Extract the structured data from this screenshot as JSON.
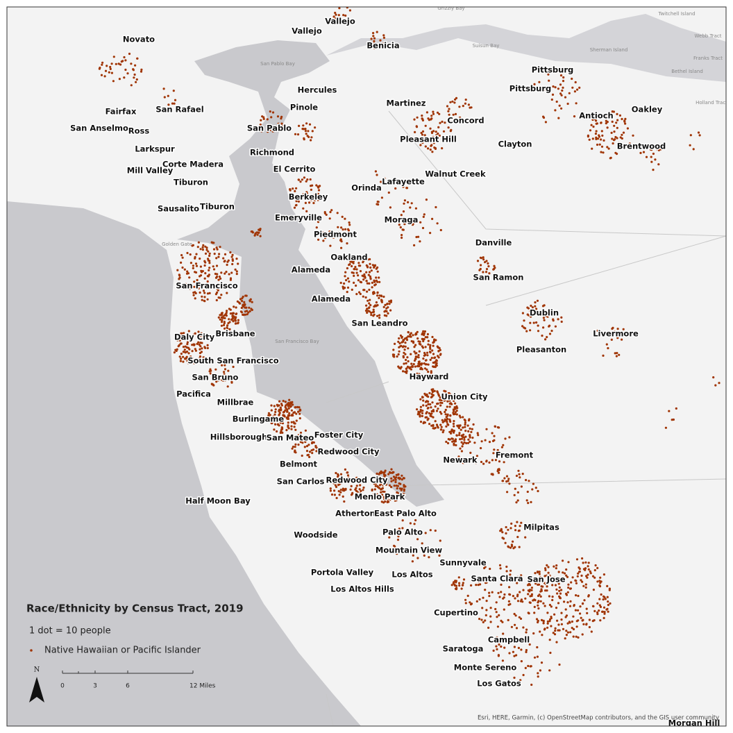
{
  "map": {
    "labels": [
      "Novato",
      "Vallejo",
      "Vallejo",
      "Benicia",
      "Pittsburg",
      "Pittsburg",
      "Hercules",
      "Pinole",
      "Martinez",
      "Fairfax",
      "San Rafael",
      "San Anselmo",
      "Ross",
      "Concord",
      "Antioch",
      "Oakley",
      "San Pablo",
      "Pleasant Hill",
      "Clayton",
      "Brentwood",
      "Larkspur",
      "Richmond",
      "Corte Madera",
      "El Cerrito",
      "Walnut Creek",
      "Mill Valley",
      "Tiburon",
      "Lafayette",
      "Orinda",
      "Sausalito",
      "Tiburon",
      "Berkeley",
      "Emeryville",
      "Moraga",
      "Piedmont",
      "Danville",
      "Oakland",
      "Alameda",
      "San Ramon",
      "San Francisco",
      "Alameda",
      "Dublin",
      "San Leandro",
      "Livermore",
      "Daly City",
      "Brisbane",
      "Pleasanton",
      "South San Francisco",
      "San Bruno",
      "Hayward",
      "Pacifica",
      "Union City",
      "Millbrae",
      "Burlingame",
      "Foster City",
      "Hillsborough",
      "San Mateo",
      "Redwood City",
      "Fremont",
      "Newark",
      "Belmont",
      "San Carlos",
      "Redwood City",
      "Half Moon Bay",
      "Menlo Park",
      "Atherton",
      "East Palo Alto",
      "Milpitas",
      "Woodside",
      "Palo Alto",
      "Mountain View",
      "Sunnyvale",
      "Portola Valley",
      "Los Altos",
      "Santa Clara",
      "San Jose",
      "Los Altos Hills",
      "Cupertino",
      "Campbell",
      "Saratoga",
      "Monte Sereno",
      "Los Gatos",
      "Morgan Hill"
    ],
    "water_labels": [
      "San Pablo Bay",
      "San Francisco Bay",
      "Golden Gate",
      "Grizzly Bay",
      "Suisun Bay",
      "Sherman Island",
      "Twitchell Island",
      "Webb Tract",
      "Franks Tract",
      "Bethel Island",
      "Holland Tract"
    ],
    "legend": {
      "title": "Race/Ethnicity by Census Tract, 2019",
      "dot_ratio": "1 dot = 10 people",
      "entry": "Native Hawaiian or Pacific Islander"
    },
    "scale_bar": {
      "labels": [
        "0",
        "3",
        "6",
        "12 Miles"
      ]
    },
    "north": "N",
    "attribution": "Esri, HERE, Garmin, (c) OpenStreetMap contributors, and the GIS user community"
  }
}
